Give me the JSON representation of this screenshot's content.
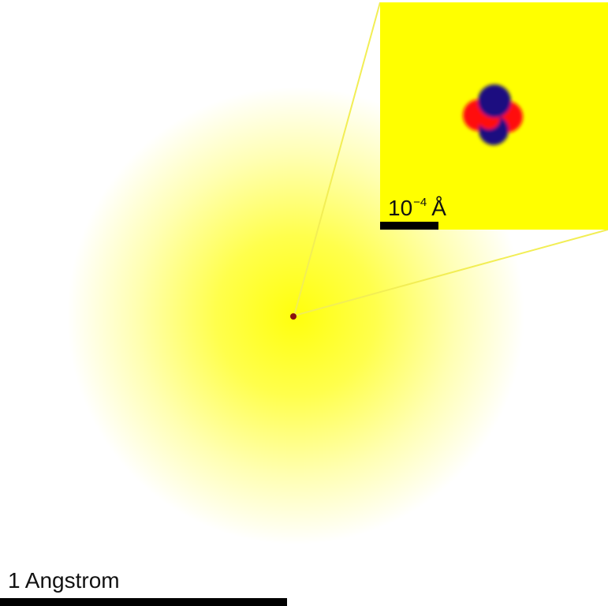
{
  "colors": {
    "electron_cloud": "#ffff00",
    "inset_background": "#ffff00",
    "proton": "#ff0000",
    "neutron": "#1a1180",
    "scale_bar": "#000000",
    "zoom_lines": "#f2ee55"
  },
  "main_scale": {
    "label": "1 Angstrom"
  },
  "inset_scale": {
    "base": "10",
    "exponent": "−4",
    "unit": "Å"
  }
}
